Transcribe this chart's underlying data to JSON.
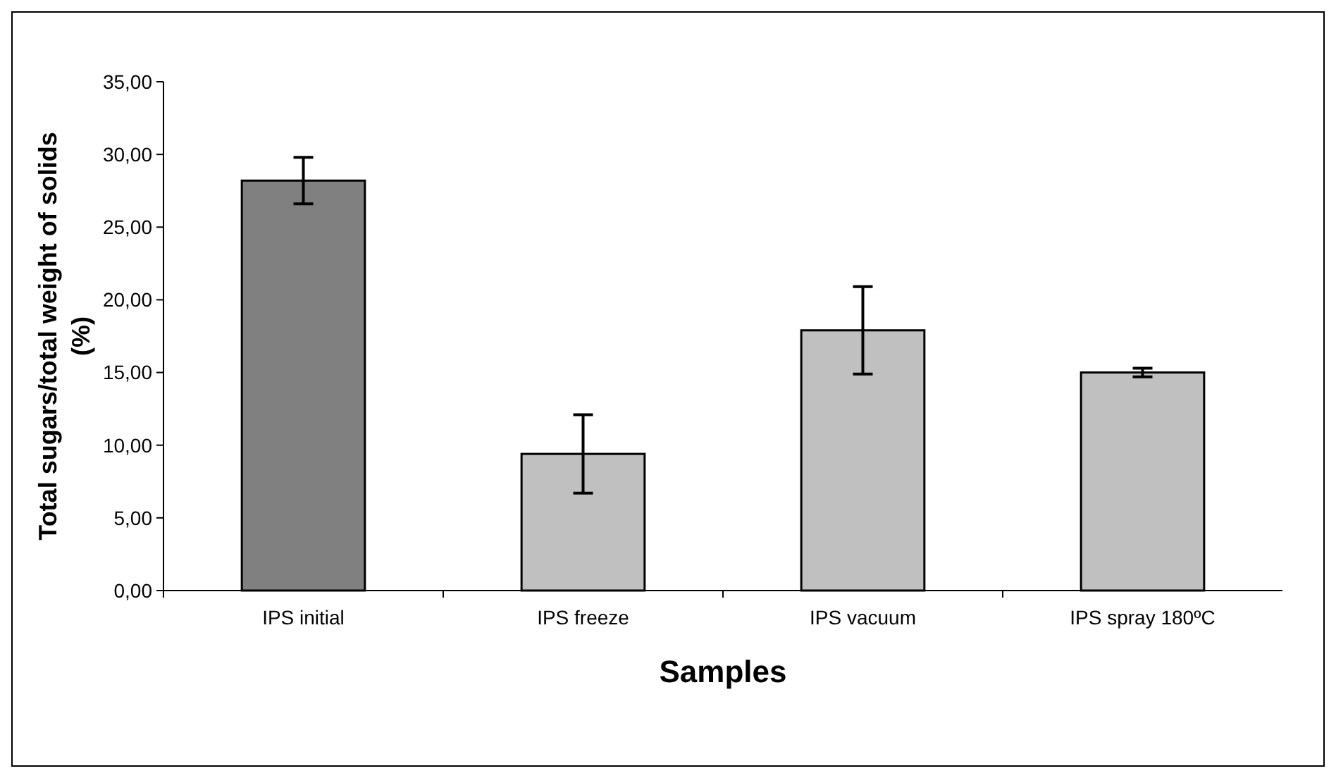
{
  "chart_data": {
    "type": "bar",
    "xlabel": "Samples",
    "ylabel": "Total sugars/total weight of solids (%)",
    "categories": [
      "IPS initial",
      "IPS freeze",
      "IPS vacuum",
      "IPS spray 180ºC"
    ],
    "values": [
      28.2,
      9.4,
      17.9,
      15.0
    ],
    "errors": [
      1.6,
      2.7,
      3.0,
      0.3
    ],
    "colors": [
      "#808080",
      "#c0c0c0",
      "#c0c0c0",
      "#c0c0c0"
    ],
    "ylim": [
      0,
      35
    ],
    "yticks": [
      {
        "value": 0,
        "label": "0,00"
      },
      {
        "value": 5,
        "label": "5,00"
      },
      {
        "value": 10,
        "label": "10,00"
      },
      {
        "value": 15,
        "label": "15,00"
      },
      {
        "value": 20,
        "label": "20,00"
      },
      {
        "value": 25,
        "label": "25,00"
      },
      {
        "value": 30,
        "label": "30,00"
      },
      {
        "value": 35,
        "label": "35,00"
      }
    ],
    "grid": false
  }
}
